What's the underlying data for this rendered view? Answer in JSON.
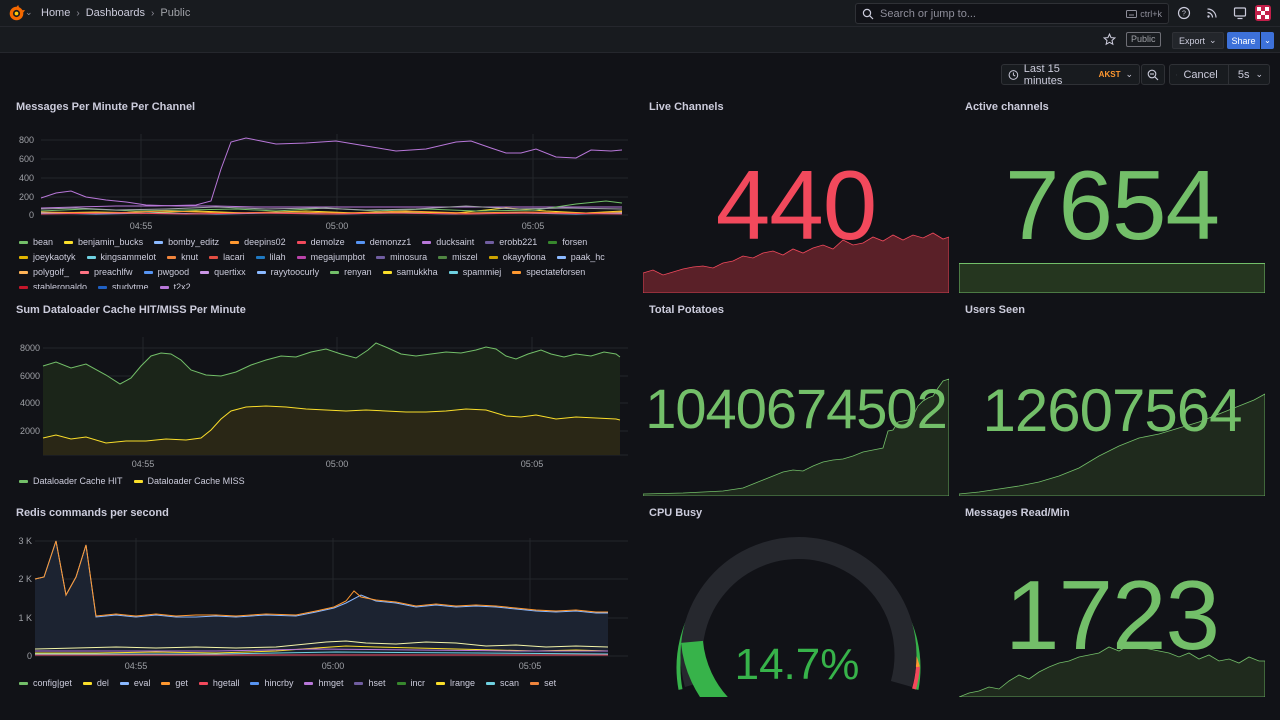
{
  "topbar": {
    "breadcrumbs": [
      "Home",
      "Dashboards",
      "Public"
    ],
    "search_placeholder": "Search or jump to...",
    "search_shortcut": "ctrl+k"
  },
  "toolbar": {
    "public_tag": "Public",
    "export_label": "Export",
    "share_label": "Share"
  },
  "time": {
    "range": "Last 15 minutes",
    "timezone": "AKST",
    "cancel_label": "Cancel",
    "refresh_interval": "5s"
  },
  "colors": {
    "red": "#f2495c",
    "green": "#73bf69",
    "yellow": "#fade2a",
    "orange": "#ff9830",
    "blue": "#5794f2",
    "purple": "#b877d9"
  },
  "panels": {
    "messages_per_minute": {
      "title": "Messages Per Minute Per Channel",
      "y_ticks": [
        "800",
        "600",
        "400",
        "200",
        "0"
      ],
      "x_ticks": [
        "04:55",
        "05:00",
        "05:05"
      ],
      "legend": [
        {
          "name": "bean",
          "color": "#73bf69"
        },
        {
          "name": "benjamin_bucks",
          "color": "#fade2a"
        },
        {
          "name": "bomby_editz",
          "color": "#8ab8ff"
        },
        {
          "name": "deepins02",
          "color": "#ff9830"
        },
        {
          "name": "demolze",
          "color": "#f2495c"
        },
        {
          "name": "demonzz1",
          "color": "#5794f2"
        },
        {
          "name": "ducksaint",
          "color": "#b877d9"
        },
        {
          "name": "erobb221",
          "color": "#705da0"
        },
        {
          "name": "forsen",
          "color": "#37872d"
        },
        {
          "name": "joeykaotyk",
          "color": "#e0b400"
        },
        {
          "name": "kingsammelot",
          "color": "#6ed0e0"
        },
        {
          "name": "knut",
          "color": "#ef843c"
        },
        {
          "name": "lacari",
          "color": "#e24d42"
        },
        {
          "name": "lilah",
          "color": "#1f78c1"
        },
        {
          "name": "megajumpbot",
          "color": "#ba43a9"
        },
        {
          "name": "minosura",
          "color": "#705da0"
        },
        {
          "name": "miszel",
          "color": "#508642"
        },
        {
          "name": "okayyfiona",
          "color": "#cca300"
        },
        {
          "name": "paak_hc",
          "color": "#8ab8ff"
        },
        {
          "name": "polygolf_",
          "color": "#ffb357"
        },
        {
          "name": "preachlfw",
          "color": "#ff7383"
        },
        {
          "name": "pwgood",
          "color": "#5794f2"
        },
        {
          "name": "quertixx",
          "color": "#ca95e5"
        },
        {
          "name": "rayytoocurly",
          "color": "#8ab8ff"
        },
        {
          "name": "renyan",
          "color": "#73bf69"
        },
        {
          "name": "samukkha",
          "color": "#fade2a"
        },
        {
          "name": "spammiej",
          "color": "#6ed0e0"
        },
        {
          "name": "spectateforsen",
          "color": "#ff9830"
        },
        {
          "name": "stableronaldo",
          "color": "#c4162a"
        },
        {
          "name": "studytme",
          "color": "#1f60c4"
        },
        {
          "name": "t2x2",
          "color": "#b877d9"
        }
      ]
    },
    "live_channels": {
      "title": "Live Channels",
      "value": "440"
    },
    "active_channels": {
      "title": "Active channels",
      "value": "7654"
    },
    "dataloader": {
      "title": "Sum Dataloader Cache HIT/MISS Per Minute",
      "y_ticks": [
        "8000",
        "6000",
        "4000",
        "2000"
      ],
      "x_ticks": [
        "04:55",
        "05:00",
        "05:05"
      ],
      "legend": [
        {
          "name": "Dataloader Cache HIT",
          "color": "#73bf69"
        },
        {
          "name": "Dataloader Cache MISS",
          "color": "#fade2a"
        }
      ]
    },
    "total_potatoes": {
      "title": "Total Potatoes",
      "value": "1040674502"
    },
    "users_seen": {
      "title": "Users Seen",
      "value": "12607564"
    },
    "redis": {
      "title": "Redis commands per second",
      "y_ticks": [
        "3 K",
        "2 K",
        "1 K",
        "0"
      ],
      "x_ticks": [
        "04:55",
        "05:00",
        "05:05"
      ],
      "legend": [
        {
          "name": "config|get",
          "color": "#73bf69"
        },
        {
          "name": "del",
          "color": "#fade2a"
        },
        {
          "name": "eval",
          "color": "#8ab8ff"
        },
        {
          "name": "get",
          "color": "#ff9830"
        },
        {
          "name": "hgetall",
          "color": "#f2495c"
        },
        {
          "name": "hincrby",
          "color": "#5794f2"
        },
        {
          "name": "hmget",
          "color": "#b877d9"
        },
        {
          "name": "hset",
          "color": "#705da0"
        },
        {
          "name": "incr",
          "color": "#37872d"
        },
        {
          "name": "lrange",
          "color": "#fade2a"
        },
        {
          "name": "scan",
          "color": "#6ed0e0"
        },
        {
          "name": "set",
          "color": "#ef843c"
        }
      ]
    },
    "cpu_busy": {
      "title": "CPU Busy",
      "value": "14.7%",
      "percent": 14.7
    },
    "messages_read": {
      "title": "Messages Read/Min",
      "value": "1723"
    }
  }
}
